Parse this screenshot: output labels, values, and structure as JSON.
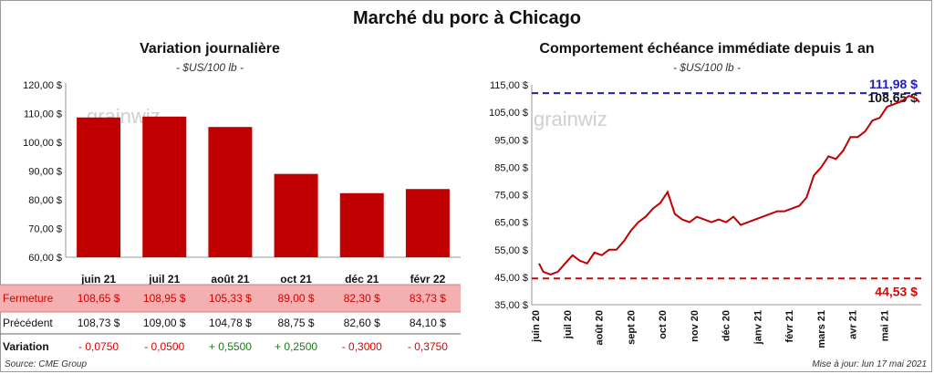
{
  "title": "Marché du porc à Chicago",
  "left": {
    "title": "Variation journalière",
    "unit": "- $US/100 lb -",
    "watermark": "grainwiz",
    "row_labels": [
      "Fermeture",
      "Précédent",
      "Variation"
    ],
    "source": "Source: CME Group"
  },
  "right": {
    "title": "Comportement échéance immédiate depuis 1 an",
    "unit": "- $US/100 lb -",
    "watermark": "grainwiz",
    "updated": "Mise à jour: lun 17 mai 2021"
  },
  "colors": {
    "bar": "#c00000",
    "line": "#c00000",
    "high": "#1f1fb4",
    "low": "#e00000",
    "closing_row_bg": "#f4b0b0",
    "positive": "#1a7a1a",
    "negative": "#e00000"
  },
  "chart_data": [
    {
      "type": "bar",
      "categories": [
        "juin 21",
        "juil 21",
        "août 21",
        "oct 21",
        "déc 21",
        "févr 22"
      ],
      "values": [
        108.65,
        108.95,
        105.33,
        89.0,
        82.3,
        83.73
      ],
      "ylim": [
        60,
        120
      ],
      "yticks": [
        "60,00 $",
        "70,00 $",
        "80,00 $",
        "90,00 $",
        "100,00 $",
        "110,00 $",
        "120,00 $"
      ],
      "table": {
        "closing": [
          "108,65 $",
          "108,95 $",
          "105,33 $",
          "89,00 $",
          "82,30 $",
          "83,73 $"
        ],
        "previous": [
          "108,73 $",
          "109,00 $",
          "104,78 $",
          "88,75 $",
          "82,60 $",
          "84,10 $"
        ],
        "change": [
          "- 0,0750",
          "- 0,0500",
          "+ 0,5500",
          "+ 0,2500",
          "- 0,3000",
          "- 0,3750"
        ],
        "change_sign": [
          "neg",
          "neg",
          "pos",
          "pos",
          "neg",
          "neg"
        ]
      }
    },
    {
      "type": "line",
      "xlabels": [
        "juin 20",
        "juil 20",
        "août 20",
        "sept 20",
        "oct 20",
        "nov 20",
        "déc 20",
        "janv 21",
        "févr 21",
        "mars 21",
        "avr 21",
        "mai 21"
      ],
      "ylim": [
        35,
        115
      ],
      "yticks": [
        "35,00 $",
        "45,00 $",
        "55,00 $",
        "65,00 $",
        "75,00 $",
        "85,00 $",
        "95,00 $",
        "105,00 $",
        "115,00 $"
      ],
      "high": 111.98,
      "high_label": "111,98 $",
      "low": 44.53,
      "low_label": "44,53 $",
      "last": 108.65,
      "last_label": "108,65 $",
      "series": [
        {
          "x": [
            "2020-05-18",
            "2020-05-22",
            "2020-05-29",
            "2020-06-05",
            "2020-06-12",
            "2020-06-19",
            "2020-06-26",
            "2020-07-03",
            "2020-07-10",
            "2020-07-17",
            "2020-07-24",
            "2020-07-31",
            "2020-08-07",
            "2020-08-14",
            "2020-08-21",
            "2020-08-28",
            "2020-09-04",
            "2020-09-11",
            "2020-09-18",
            "2020-09-25",
            "2020-10-02",
            "2020-10-09",
            "2020-10-16",
            "2020-10-23",
            "2020-10-30",
            "2020-11-06",
            "2020-11-13",
            "2020-11-20",
            "2020-11-27",
            "2020-12-04",
            "2020-12-11",
            "2020-12-18",
            "2020-12-25",
            "2021-01-01",
            "2021-01-08",
            "2021-01-15",
            "2021-01-22",
            "2021-01-29",
            "2021-02-05",
            "2021-02-12",
            "2021-02-19",
            "2021-02-26",
            "2021-03-05",
            "2021-03-12",
            "2021-03-19",
            "2021-03-26",
            "2021-04-02",
            "2021-04-09",
            "2021-04-16",
            "2021-04-23",
            "2021-04-30",
            "2021-05-07",
            "2021-05-14",
            "2021-05-17"
          ],
          "y": [
            50,
            47,
            46,
            47,
            50,
            53,
            51,
            50,
            54,
            53,
            55,
            55,
            58,
            62,
            65,
            67,
            70,
            72,
            76,
            68,
            66,
            65,
            67,
            66,
            65,
            66,
            65,
            67,
            64,
            65,
            66,
            67,
            68,
            69,
            69,
            70,
            71,
            74,
            82,
            85,
            89,
            88,
            91,
            96,
            96,
            98,
            102,
            103,
            107,
            108,
            109,
            111,
            110,
            108.65
          ]
        }
      ]
    }
  ]
}
